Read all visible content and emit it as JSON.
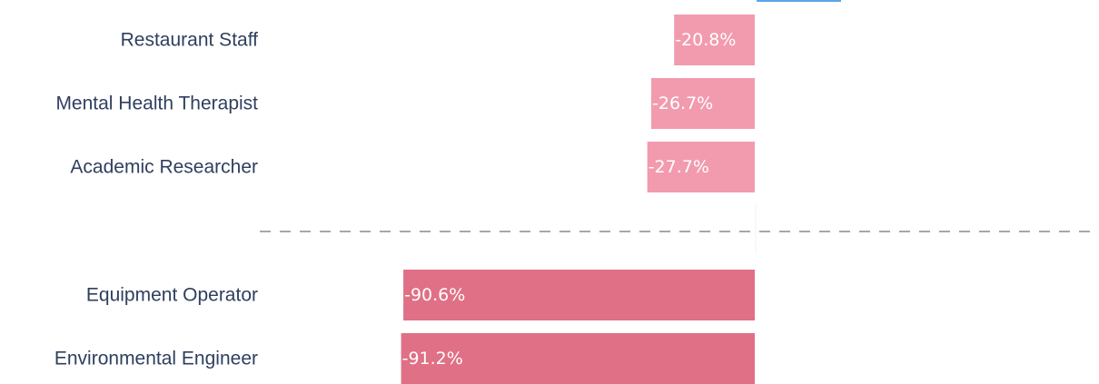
{
  "chart_data": {
    "type": "bar",
    "orientation": "horizontal",
    "value_unit": "%",
    "categories": [
      "Restaurant Staff",
      "Mental Health Therapist",
      "Academic Researcher",
      "Equipment Operator",
      "Environmental Engineer"
    ],
    "values": [
      -20.8,
      -26.7,
      -27.7,
      -90.6,
      -91.2
    ],
    "value_labels": [
      "-20.8%",
      "-26.7%",
      "-27.7%",
      "-90.6%",
      "-91.2%"
    ],
    "groups": [
      {
        "categories": [
          "Restaurant Staff",
          "Mental Health Therapist",
          "Academic Researcher"
        ],
        "color": "#f29bae"
      },
      {
        "categories": [
          "Equipment Operator",
          "Environmental Engineer"
        ],
        "color": "#e07085"
      }
    ],
    "group_separator": "dashed",
    "title": "",
    "xlabel": "",
    "ylabel": "",
    "grid": false,
    "legend": "none",
    "colors": {
      "light_bar": "#f29bae",
      "dark_bar": "#e07085",
      "label_text": "#2f3f5e",
      "value_text": "#ffffff",
      "separator": "#8a8a8a",
      "top_accent": "#5aa6ea"
    }
  }
}
